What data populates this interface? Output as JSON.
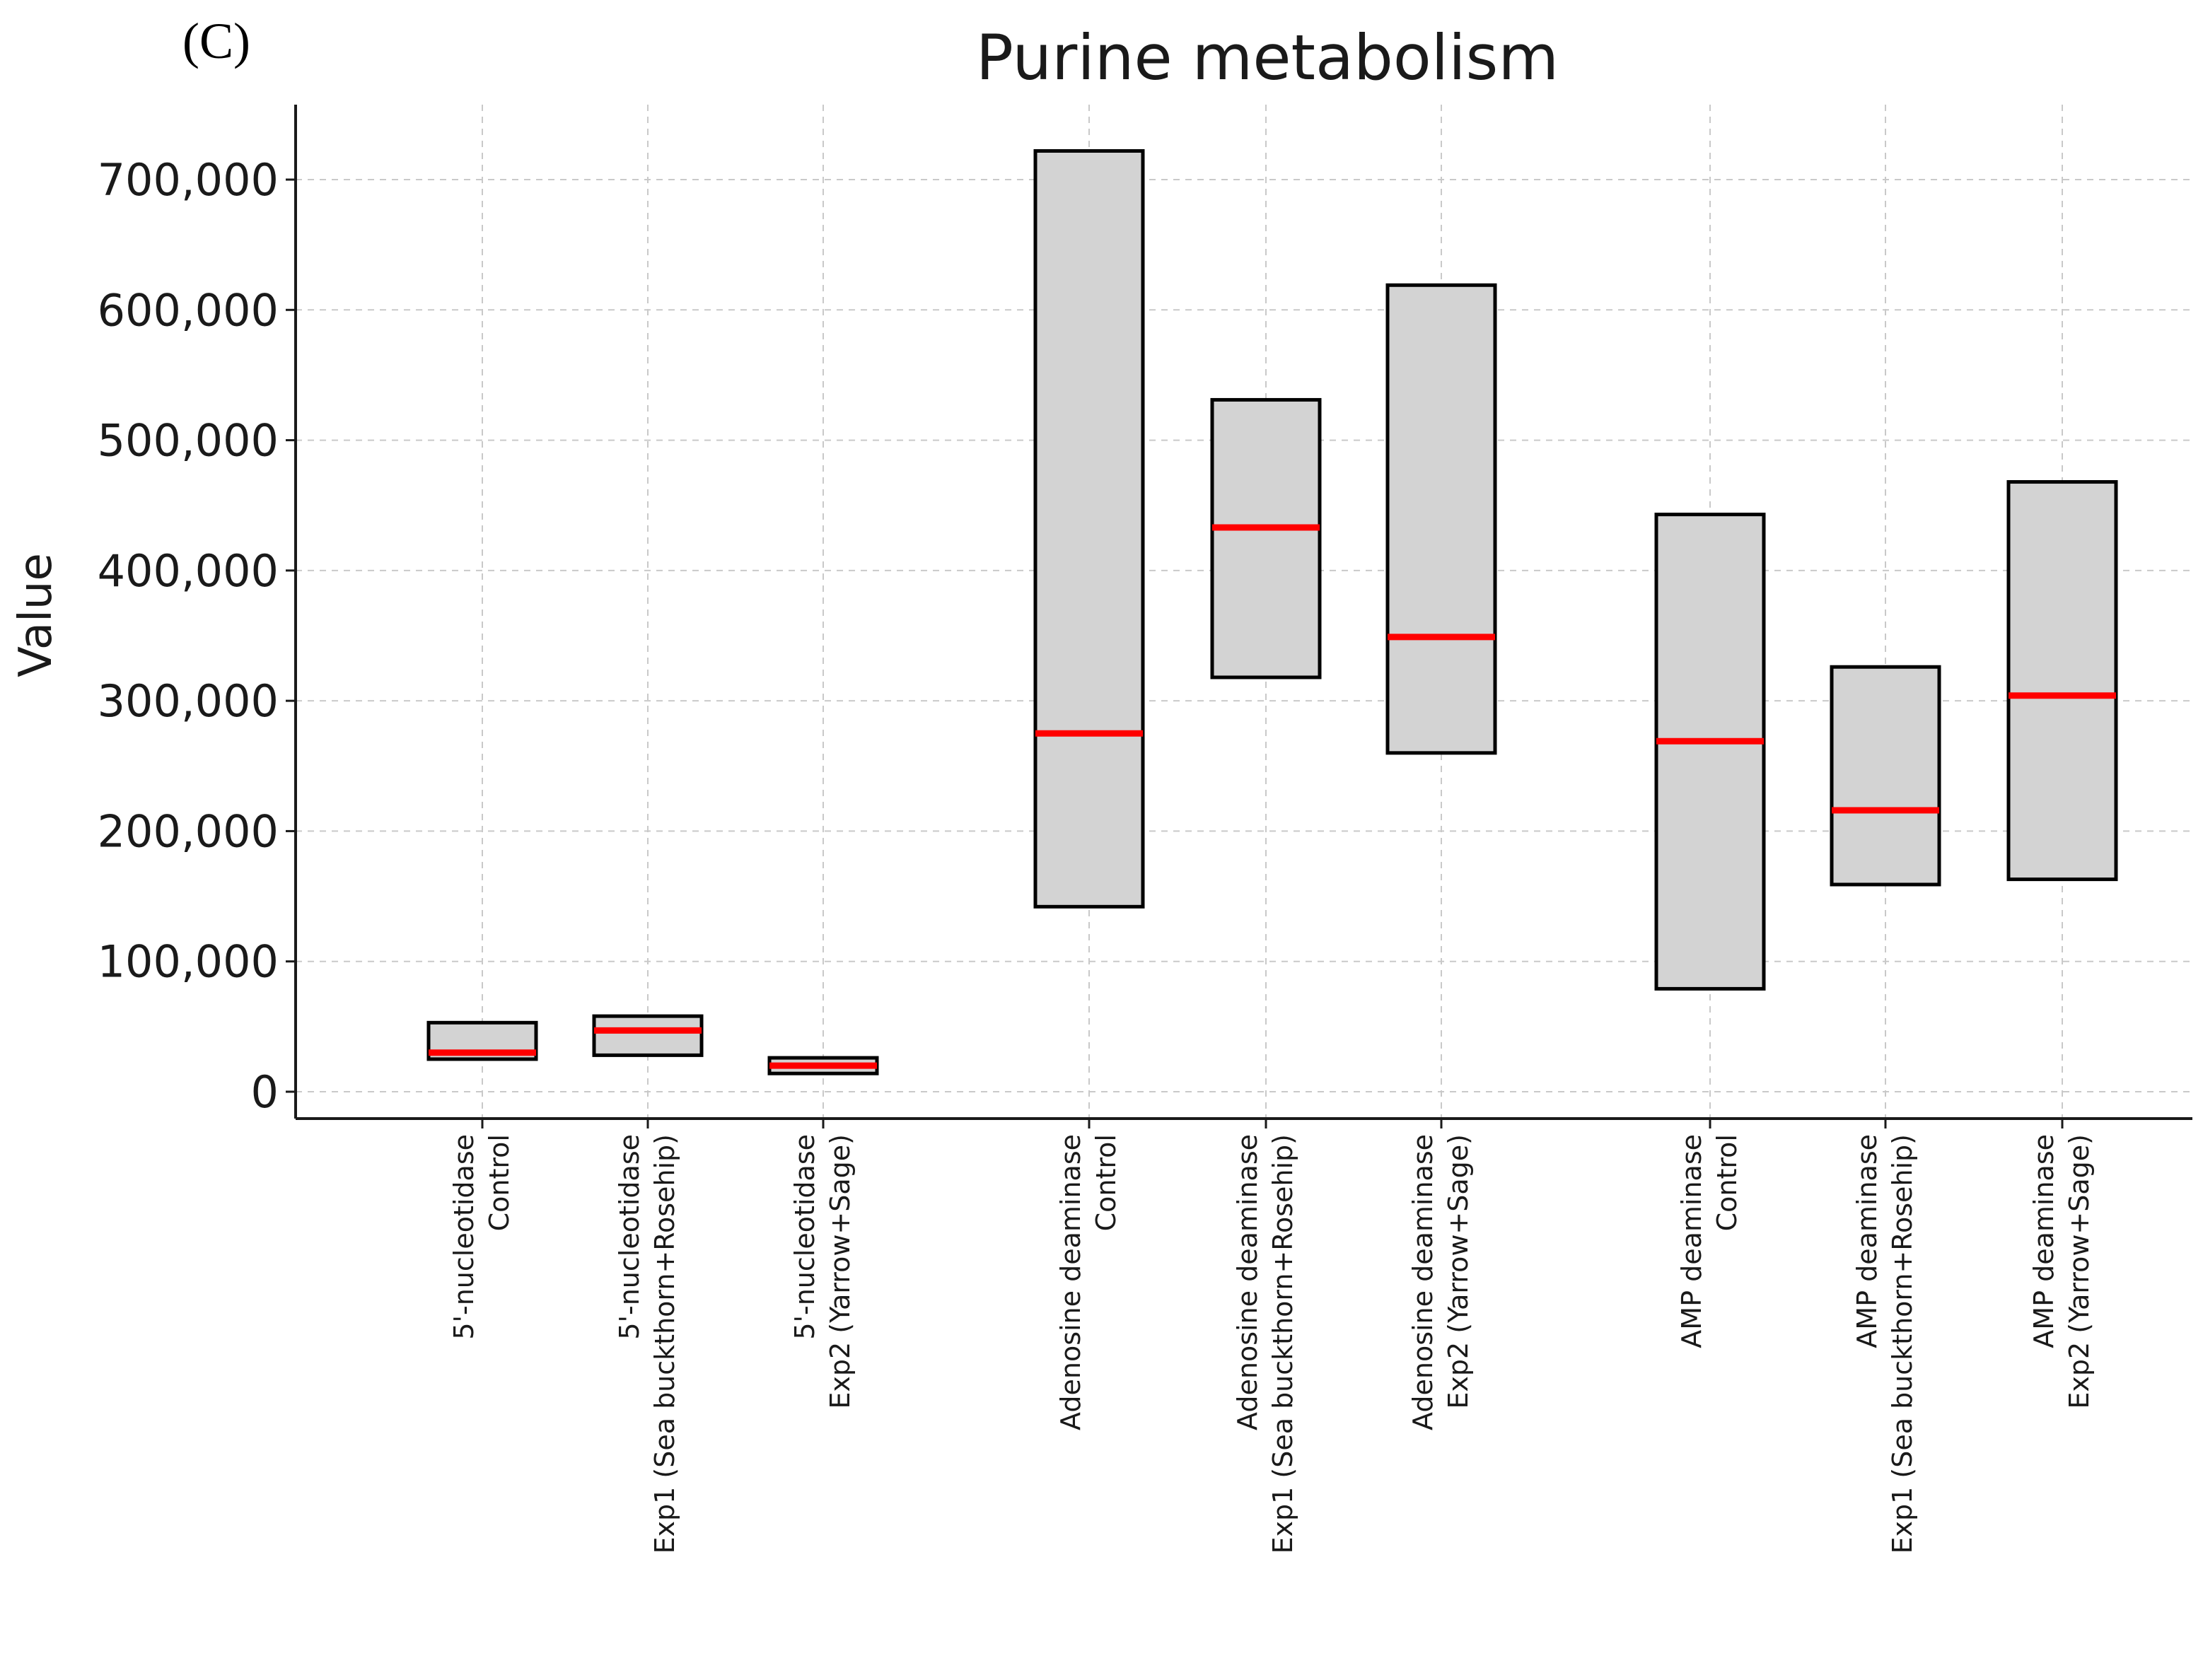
{
  "panel_label": "(C)",
  "chart_data": {
    "type": "box",
    "title": "Purine metabolism",
    "xlabel": "",
    "ylabel": "Value",
    "ylim": [
      -20000,
      760000
    ],
    "yticks": [
      0,
      100000,
      200000,
      300000,
      400000,
      500000,
      600000,
      700000
    ],
    "ytick_labels": [
      "0",
      "100,000",
      "200,000",
      "300,000",
      "400,000",
      "500,000",
      "600,000",
      "700,000"
    ],
    "grid": true,
    "groups": [
      {
        "enzyme": "5'-nucleotidase",
        "condition": "Control",
        "low": 25000,
        "median": 30000,
        "high": 53000
      },
      {
        "enzyme": "5'-nucleotidase",
        "condition": "Exp1 (Sea buckthorn+Rosehip)",
        "low": 28000,
        "median": 47000,
        "high": 58000
      },
      {
        "enzyme": "5'-nucleotidase",
        "condition": "Exp2 (Yarrow+Sage)",
        "low": 14000,
        "median": 20000,
        "high": 26000
      },
      {
        "enzyme": "Adenosine deaminase",
        "condition": "Control",
        "low": 142000,
        "median": 275000,
        "high": 722000
      },
      {
        "enzyme": "Adenosine deaminase",
        "condition": "Exp1 (Sea buckthorn+Rosehip)",
        "low": 318000,
        "median": 433000,
        "high": 531000
      },
      {
        "enzyme": "Adenosine deaminase",
        "condition": "Exp2 (Yarrow+Sage)",
        "low": 260000,
        "median": 349000,
        "high": 619000
      },
      {
        "enzyme": "AMP deaminase",
        "condition": "Control",
        "low": 79000,
        "median": 269000,
        "high": 443000
      },
      {
        "enzyme": "AMP deaminase",
        "condition": "Exp1 (Sea buckthorn+Rosehip)",
        "low": 159000,
        "median": 216000,
        "high": 326000
      },
      {
        "enzyme": "AMP deaminase",
        "condition": "Exp2 (Yarrow+Sage)",
        "low": 163000,
        "median": 304000,
        "high": 468000
      }
    ]
  },
  "colors": {
    "box_fill": "#d3d3d3",
    "box_edge": "#000000",
    "median": "#ff0000",
    "grid": "#c9c9c9",
    "axis": "#1a1a1a"
  }
}
